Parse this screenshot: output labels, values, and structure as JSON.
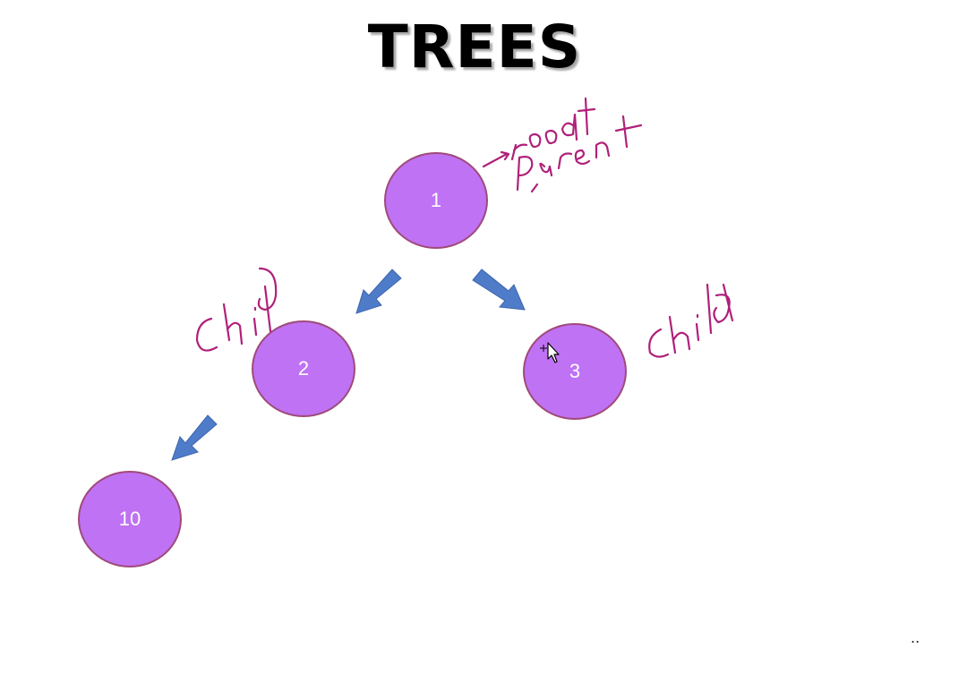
{
  "slide": {
    "title": "TREES",
    "footer_mark": ".."
  },
  "nodes": [
    {
      "id": "1",
      "label": "1"
    },
    {
      "id": "2",
      "label": "2"
    },
    {
      "id": "3",
      "label": "3"
    },
    {
      "id": "10",
      "label": "10"
    }
  ],
  "edges": [
    {
      "from": "1",
      "to": "2"
    },
    {
      "from": "1",
      "to": "3"
    },
    {
      "from": "2",
      "to": "10"
    }
  ],
  "annotations": {
    "root": "root",
    "parent": "parent",
    "child_left": "child",
    "child_right": "child"
  },
  "colors": {
    "node_fill": "#bf72f4",
    "node_border": "#a04a7a",
    "arrow_fill": "#4f7cc9",
    "ink": "#b0207a"
  }
}
